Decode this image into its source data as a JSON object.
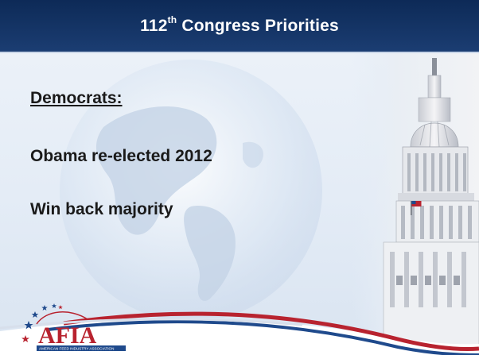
{
  "slide": {
    "title_number": "112",
    "title_suffix": "th",
    "title_rest": "Congress Priorities",
    "heading": "Democrats:",
    "bullets": [
      "Obama re-elected 2012",
      "Win back majority"
    ]
  },
  "logo": {
    "text": "AFIA",
    "tagline": "AMERICAN FEED INDUSTRY ASSOCIATION"
  },
  "colors": {
    "title_bar": "#0d2a57",
    "accent_red": "#b8232f",
    "accent_blue": "#1f4a8c"
  },
  "icons": [
    "globe-graphic",
    "capitol-dome-image",
    "star-icon"
  ]
}
